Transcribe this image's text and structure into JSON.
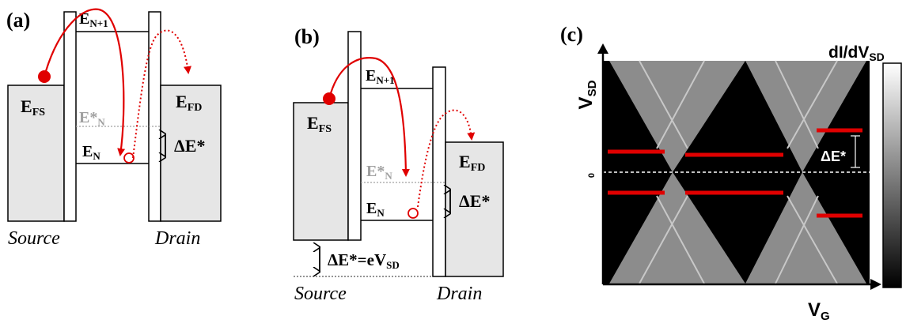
{
  "panels": {
    "a": {
      "label": "(a)",
      "levels": {
        "upper": "E",
        "upper_sub": "N+1",
        "excited": "E*",
        "excited_sub": "N",
        "ground": "E",
        "ground_sub": "N"
      },
      "source": {
        "fermi": "E",
        "fermi_sub": "FS",
        "name": "Source"
      },
      "drain": {
        "fermi": "E",
        "fermi_sub": "FD",
        "name": "Drain"
      },
      "energy_gap": "ΔE*"
    },
    "b": {
      "label": "(b)",
      "levels": {
        "upper": "E",
        "upper_sub": "N+1",
        "excited": "E*",
        "excited_sub": "N",
        "ground": "E",
        "ground_sub": "N"
      },
      "source": {
        "fermi": "E",
        "fermi_sub": "FS",
        "name": "Source"
      },
      "drain": {
        "fermi": "E",
        "fermi_sub": "FD",
        "name": "Drain"
      },
      "energy_gap": "ΔE*",
      "bias": "ΔE*=eV",
      "bias_sub": "SD"
    },
    "c": {
      "label": "(c)",
      "y_axis": "V",
      "y_axis_sub": "SD",
      "x_axis": "V",
      "x_axis_sub": "G",
      "colorbar_title": "dI/dV",
      "colorbar_sub": "SD",
      "zero_tick": "0",
      "gap_label": "ΔE*"
    }
  },
  "colors": {
    "electron": "#e00000",
    "tunnel_arrow": "#e00000",
    "barrier_fill": "#ffffff",
    "lead_fill": "#e6e6e6",
    "excited_level": "#a0a0a0",
    "plot_background": "#000000",
    "diamond_gray": "#8c8c8c",
    "red_line": "#e00000"
  }
}
